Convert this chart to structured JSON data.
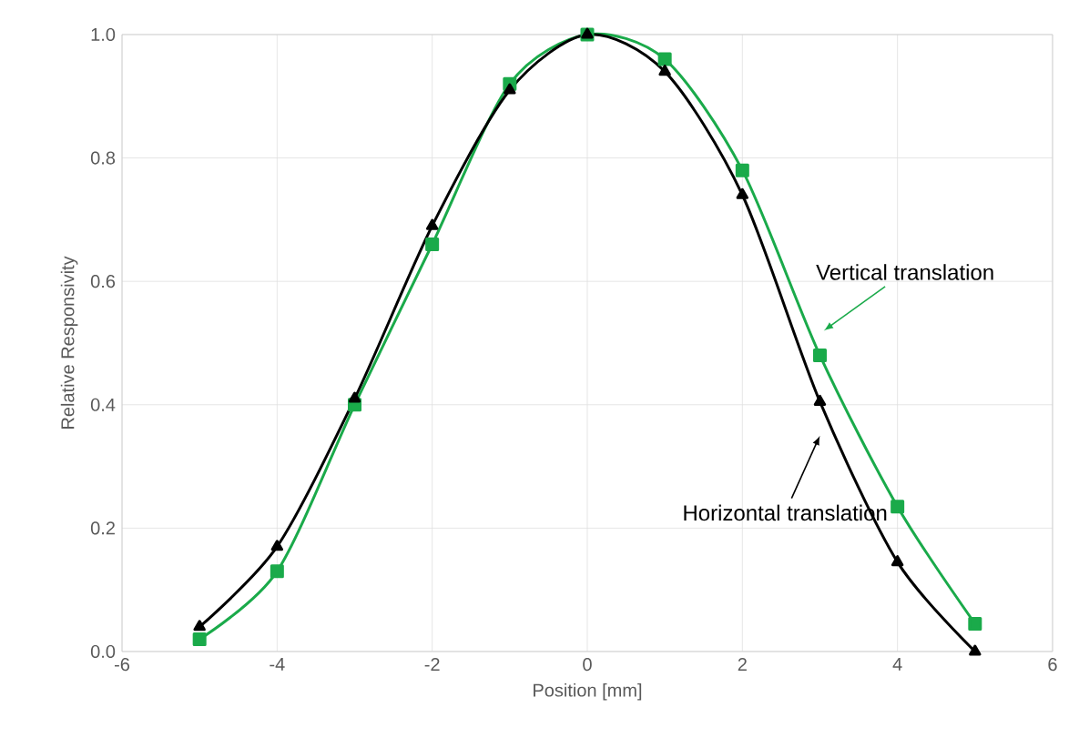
{
  "chart_data": {
    "type": "line",
    "xlabel": "Position [mm]",
    "ylabel": "Relative Responsivity",
    "x": [
      -5,
      -4,
      -3,
      -2,
      -1,
      0,
      1,
      2,
      3,
      4,
      5
    ],
    "series": [
      {
        "name": "Vertical translation",
        "color": "#1aaa4a",
        "marker": "square",
        "values": [
          0.02,
          0.13,
          0.4,
          0.66,
          0.92,
          1.0,
          0.96,
          0.78,
          0.48,
          0.235,
          0.045
        ]
      },
      {
        "name": "Horizontal translation",
        "color": "#000000",
        "marker": "triangle",
        "values": [
          0.04,
          0.17,
          0.41,
          0.69,
          0.91,
          1.0,
          0.94,
          0.74,
          0.405,
          0.145,
          0.0
        ]
      }
    ],
    "xlim": [
      -6,
      6
    ],
    "xticks": [
      -6,
      -4,
      -2,
      0,
      2,
      4,
      6
    ],
    "ylim": [
      0,
      1.0
    ],
    "yticks": [
      {
        "value": 0,
        "label": "0.0"
      },
      {
        "value": 0.2,
        "label": "0.2"
      },
      {
        "value": 0.4,
        "label": "0.4"
      },
      {
        "value": 0.6,
        "label": "0.6"
      },
      {
        "value": 0.8,
        "label": "0.8"
      },
      {
        "value": 1.0,
        "label": "1.0"
      }
    ],
    "grid": true,
    "line_style": "solid"
  }
}
